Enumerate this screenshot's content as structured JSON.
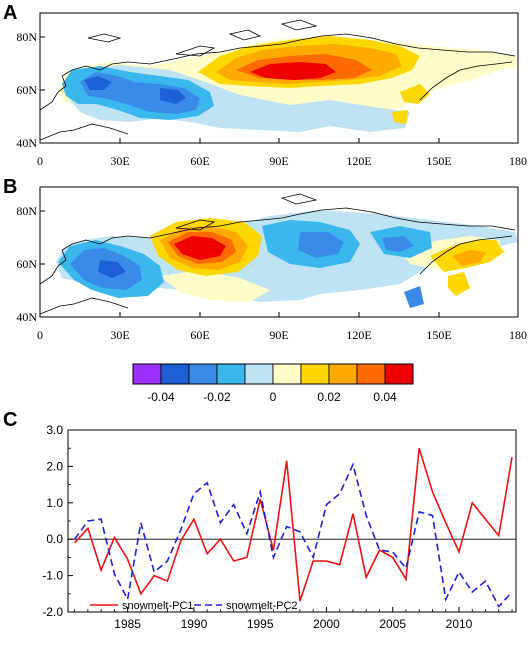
{
  "panels": [
    {
      "label": "A",
      "x_ticks": [
        "0",
        "30E",
        "60E",
        "90E",
        "120E",
        "150E",
        "180"
      ],
      "y_ticks": [
        "80N",
        "60N",
        "40N"
      ]
    },
    {
      "label": "B",
      "x_ticks": [
        "0",
        "30E",
        "60E",
        "90E",
        "120E",
        "150E",
        "180"
      ],
      "y_ticks": [
        "80N",
        "60N",
        "40N"
      ]
    }
  ],
  "colorbar": {
    "labels": [
      "-0.04",
      "-0.02",
      "0",
      "0.02",
      "0.04"
    ],
    "colors": [
      "#9b30ff",
      "#1e5fd6",
      "#3a8be8",
      "#3ab8ee",
      "#bde3f5",
      "#fffcc8",
      "#ffd700",
      "#ffaa00",
      "#ff6a00",
      "#ee0000"
    ]
  },
  "chart_data": {
    "label": "C",
    "type": "line",
    "x": [
      1981,
      1982,
      1983,
      1984,
      1985,
      1986,
      1987,
      1988,
      1989,
      1990,
      1991,
      1992,
      1993,
      1994,
      1995,
      1996,
      1997,
      1998,
      1999,
      2000,
      2001,
      2002,
      2003,
      2004,
      2005,
      2006,
      2007,
      2008,
      2009,
      2010,
      2011,
      2012,
      2013,
      2014
    ],
    "series": [
      {
        "name": "snowmelt-PC1",
        "color": "#ee1111",
        "dash": "solid",
        "values": [
          -0.1,
          0.3,
          -0.85,
          0.05,
          -0.55,
          -1.5,
          -1.0,
          -1.15,
          -0.05,
          0.55,
          -0.4,
          0.0,
          -0.6,
          -0.5,
          1.1,
          -0.3,
          2.15,
          -1.7,
          -0.6,
          -0.6,
          -0.7,
          0.7,
          -1.05,
          -0.3,
          -0.5,
          -1.1,
          2.5,
          1.3,
          0.45,
          -0.35,
          1.0,
          0.55,
          0.1,
          2.25
        ]
      },
      {
        "name": "snowmelt-PC2",
        "color": "#1a22dd",
        "dash": "dashed",
        "values": [
          0.0,
          0.5,
          0.55,
          -0.95,
          -1.65,
          0.45,
          -0.9,
          -0.6,
          0.25,
          1.25,
          1.55,
          0.45,
          0.95,
          0.15,
          1.3,
          -0.5,
          0.35,
          0.2,
          -0.5,
          0.95,
          1.25,
          2.05,
          0.65,
          -0.3,
          -0.35,
          -0.8,
          0.75,
          0.65,
          -1.65,
          -0.9,
          -1.45,
          -1.15,
          -1.85,
          -1.45
        ]
      }
    ],
    "x_ticks": [
      1985,
      1990,
      1995,
      2000,
      2005,
      2010
    ],
    "y_ticks": [
      "3.0",
      "2.0",
      "1.0",
      "0.0",
      "-1.0",
      "-2.0"
    ],
    "xlim": [
      1980.5,
      2014.3
    ],
    "ylim": [
      -2.0,
      3.0
    ],
    "zero_line": true
  }
}
